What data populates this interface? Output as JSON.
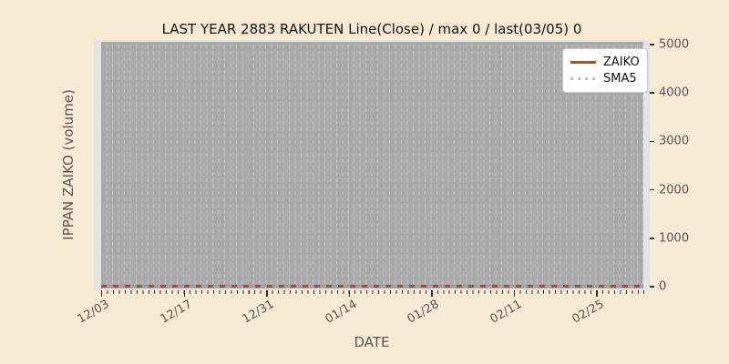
{
  "chart_data": {
    "type": "line",
    "title": "LAST YEAR 2883 RAKUTEN Line(Close) / max 0 / last(03/05) 0",
    "xlabel": "DATE",
    "ylabel": "IPPAN ZAIKO (volume)",
    "x_tick_labels": [
      "12/03",
      "12/17",
      "12/31",
      "01/14",
      "01/28",
      "02/11",
      "02/25"
    ],
    "y_tick_labels": [
      "0",
      "1000",
      "2000",
      "3000",
      "4000",
      "5000"
    ],
    "ylim": [
      0,
      5000
    ],
    "max_value": 0,
    "last_date": "03/05",
    "last_value": 0,
    "series": [
      {
        "name": "ZAIKO",
        "linestyle": "solid",
        "color": "#a0522d",
        "constant_value": 0
      },
      {
        "name": "SMA5",
        "linestyle": "dotted",
        "color": "#a8c7e0",
        "constant_value": 0
      }
    ],
    "legend_position": "upper right",
    "grid": "vertical dashed gridlines, one per day, no horizontal gridlines"
  },
  "colors": {
    "figure_background": "#f8e9d3",
    "axes_background": "#e4e4e4",
    "plot_inner_background": "#a9a9a9",
    "gridline": "#c6c6c6",
    "zaiko_line": "#a0522d",
    "sma5_dots": "#a8c7e0",
    "sma5_overlay_on_line": "#99a3ac",
    "tick_text": "#565656",
    "title_text": "#141414"
  }
}
